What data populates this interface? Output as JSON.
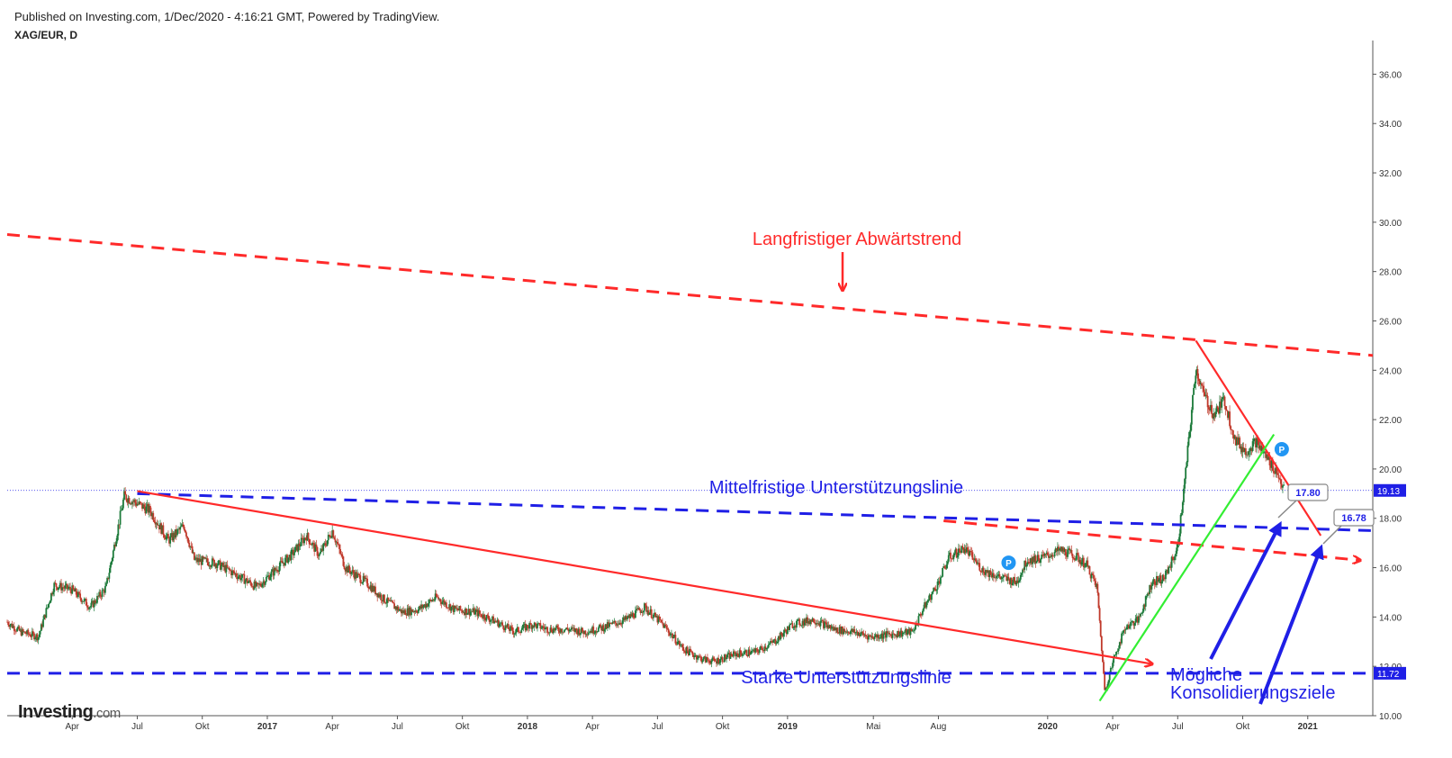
{
  "header": {
    "published": "Published on Investing.com, 1/Dec/2020 - 4:16:21 GMT, Powered by TradingView.",
    "symbol": "XAG/EUR, D"
  },
  "logo": {
    "main": "Investing",
    "suffix": ".com"
  },
  "colors": {
    "red": "#ff2a2a",
    "blue": "#1f1fe6",
    "green": "#33ee33",
    "candle_up": "#1c7a3a",
    "candle_down": "#c0392b"
  },
  "chart_data": {
    "type": "candlestick",
    "title": "XAG/EUR, D",
    "ylim": [
      10,
      37
    ],
    "y_ticks": [
      "10.00",
      "12.00",
      "14.00",
      "16.00",
      "18.00",
      "20.00",
      "22.00",
      "24.00",
      "26.00",
      "28.00",
      "30.00",
      "32.00",
      "34.00",
      "36.00"
    ],
    "x_ticks": [
      "Apr",
      "Jul",
      "Okt",
      "2017",
      "Apr",
      "Jul",
      "Okt",
      "2018",
      "Apr",
      "Jul",
      "Okt",
      "2019",
      "Mai",
      "Aug",
      "2020",
      "Apr",
      "Jul",
      "Okt",
      "2021"
    ],
    "x_tick_t": [
      2016.25,
      2016.5,
      2016.75,
      2017.0,
      2017.25,
      2017.5,
      2017.75,
      2018.0,
      2018.25,
      2018.5,
      2018.75,
      2019.0,
      2019.33,
      2019.58,
      2020.0,
      2020.25,
      2020.5,
      2020.75,
      2021.0
    ],
    "xlim": [
      2016.0,
      2021.25
    ],
    "close_series": [
      [
        2016.0,
        13.8
      ],
      [
        2016.05,
        13.4
      ],
      [
        2016.12,
        13.2
      ],
      [
        2016.18,
        15.3
      ],
      [
        2016.25,
        15.1
      ],
      [
        2016.32,
        14.4
      ],
      [
        2016.38,
        15.2
      ],
      [
        2016.45,
        18.9
      ],
      [
        2016.5,
        18.6
      ],
      [
        2016.55,
        18.3
      ],
      [
        2016.62,
        17.1
      ],
      [
        2016.68,
        17.7
      ],
      [
        2016.72,
        16.3
      ],
      [
        2016.8,
        16.2
      ],
      [
        2016.9,
        15.6
      ],
      [
        2016.96,
        15.2
      ],
      [
        2017.02,
        15.8
      ],
      [
        2017.1,
        16.6
      ],
      [
        2017.15,
        17.3
      ],
      [
        2017.2,
        16.5
      ],
      [
        2017.25,
        17.5
      ],
      [
        2017.3,
        16.0
      ],
      [
        2017.38,
        15.4
      ],
      [
        2017.45,
        14.7
      ],
      [
        2017.52,
        14.2
      ],
      [
        2017.58,
        14.3
      ],
      [
        2017.65,
        14.8
      ],
      [
        2017.72,
        14.3
      ],
      [
        2017.8,
        14.2
      ],
      [
        2017.88,
        13.8
      ],
      [
        2017.95,
        13.4
      ],
      [
        2018.02,
        13.7
      ],
      [
        2018.08,
        13.5
      ],
      [
        2018.15,
        13.5
      ],
      [
        2018.22,
        13.4
      ],
      [
        2018.3,
        13.6
      ],
      [
        2018.38,
        13.9
      ],
      [
        2018.45,
        14.4
      ],
      [
        2018.52,
        13.7
      ],
      [
        2018.6,
        12.7
      ],
      [
        2018.67,
        12.3
      ],
      [
        2018.72,
        12.2
      ],
      [
        2018.8,
        12.5
      ],
      [
        2018.88,
        12.6
      ],
      [
        2018.95,
        13.0
      ],
      [
        2019.02,
        13.7
      ],
      [
        2019.1,
        13.9
      ],
      [
        2019.18,
        13.5
      ],
      [
        2019.25,
        13.4
      ],
      [
        2019.32,
        13.2
      ],
      [
        2019.4,
        13.3
      ],
      [
        2019.48,
        13.4
      ],
      [
        2019.52,
        14.3
      ],
      [
        2019.58,
        15.4
      ],
      [
        2019.62,
        16.4
      ],
      [
        2019.68,
        16.8
      ],
      [
        2019.75,
        15.9
      ],
      [
        2019.82,
        15.6
      ],
      [
        2019.88,
        15.4
      ],
      [
        2019.92,
        16.3
      ],
      [
        2019.98,
        16.4
      ],
      [
        2020.05,
        16.7
      ],
      [
        2020.1,
        16.5
      ],
      [
        2020.15,
        16.1
      ],
      [
        2020.19,
        15.2
      ],
      [
        2020.22,
        11.0
      ],
      [
        2020.26,
        12.5
      ],
      [
        2020.3,
        13.6
      ],
      [
        2020.35,
        13.9
      ],
      [
        2020.4,
        15.4
      ],
      [
        2020.45,
        15.6
      ],
      [
        2020.5,
        16.8
      ],
      [
        2020.53,
        19.8
      ],
      [
        2020.57,
        24.1
      ],
      [
        2020.6,
        23.0
      ],
      [
        2020.64,
        22.2
      ],
      [
        2020.68,
        22.8
      ],
      [
        2020.72,
        21.2
      ],
      [
        2020.76,
        20.7
      ],
      [
        2020.8,
        21.1
      ],
      [
        2020.84,
        20.5
      ],
      [
        2020.88,
        19.9
      ],
      [
        2020.91,
        19.13
      ]
    ],
    "last_price": "19.13",
    "price_labels": {
      "support": "11.72",
      "target1": "17.80",
      "target2": "16.78"
    },
    "annotations": {
      "long_trend": "Langfristiger Abwärtstrend",
      "mid_support": "Mittelfristige Unterstützungslinie",
      "strong_support": "Starke Unterstützungslinie",
      "targets_line1": "Mögliche",
      "targets_line2": "Konsolidierungsziele"
    },
    "lines": [
      {
        "name": "long-downtrend",
        "style": "dashed",
        "color": "red",
        "from": [
          2016.0,
          29.5
        ],
        "to": [
          2021.25,
          24.6
        ]
      },
      {
        "name": "mid-support",
        "style": "dashed",
        "color": "blue",
        "from": [
          2016.5,
          19.0
        ],
        "to": [
          2021.25,
          17.5
        ]
      },
      {
        "name": "strong-support",
        "style": "dashed",
        "color": "blue",
        "from": [
          2016.0,
          11.72
        ],
        "to": [
          2021.25,
          11.72
        ]
      },
      {
        "name": "red-support-dashed",
        "style": "dashed",
        "color": "red",
        "from": [
          2019.6,
          17.9
        ],
        "to": [
          2021.2,
          16.3
        ]
      },
      {
        "name": "red-trend-solid",
        "style": "solid",
        "color": "red",
        "from": [
          2016.5,
          19.1
        ],
        "to": [
          2020.4,
          12.1
        ]
      },
      {
        "name": "red-peak-trend",
        "style": "solid",
        "color": "red",
        "from": [
          2020.57,
          25.2
        ],
        "to": [
          2021.05,
          17.3
        ]
      },
      {
        "name": "green-uptrend",
        "style": "solid",
        "color": "green",
        "from": [
          2020.2,
          10.6
        ],
        "to": [
          2020.87,
          21.4
        ]
      }
    ]
  }
}
